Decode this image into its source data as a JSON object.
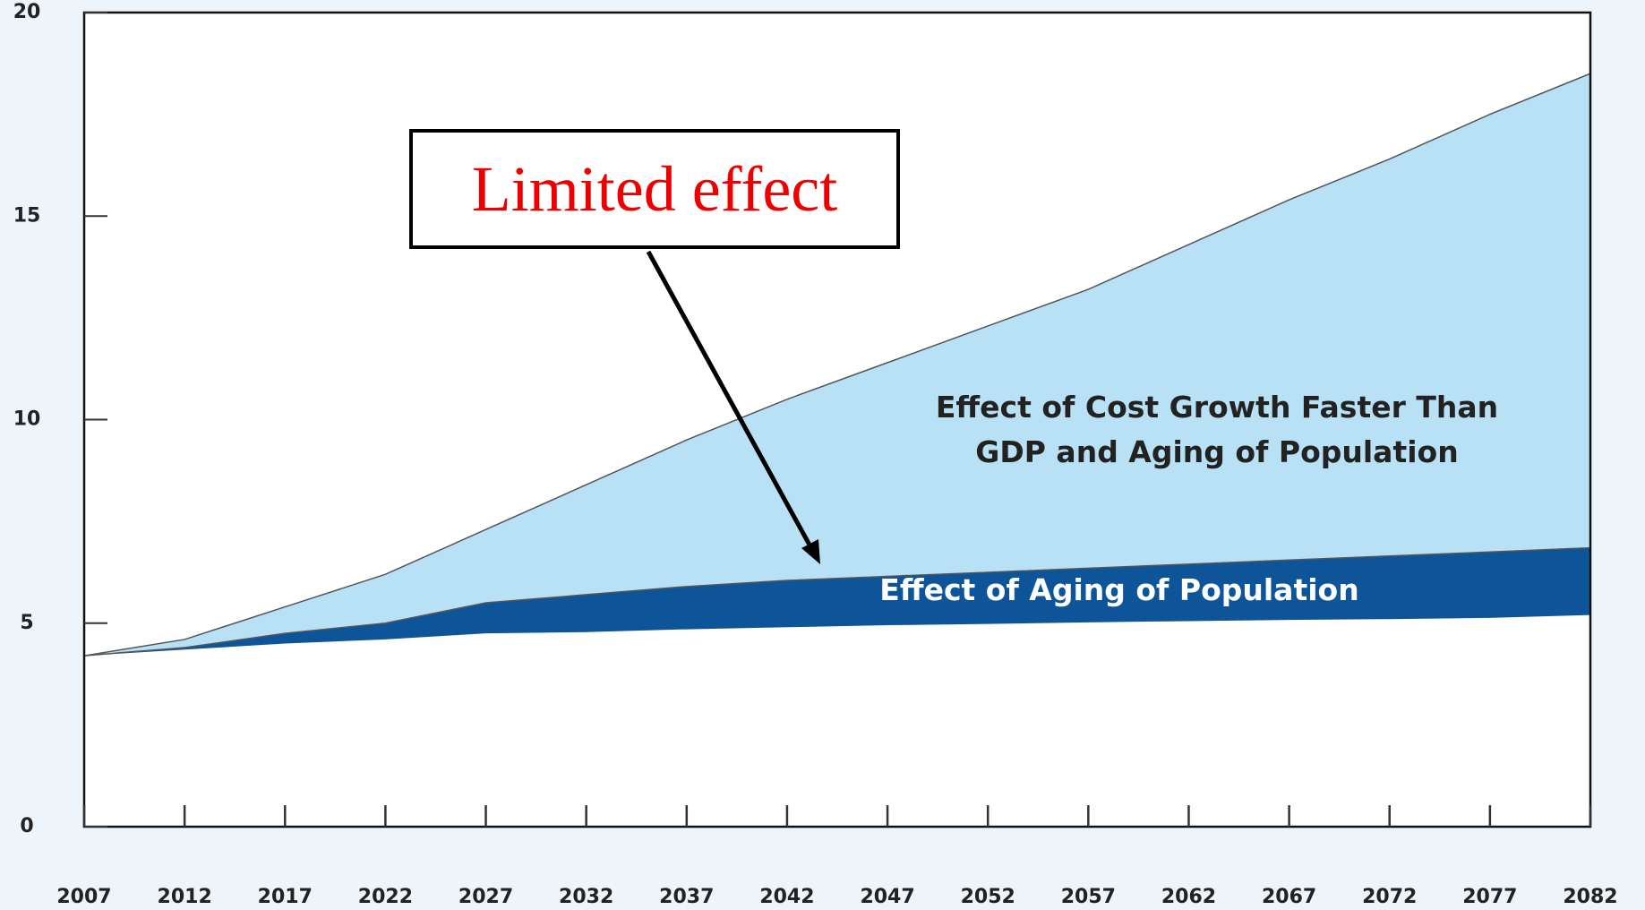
{
  "chart_data": {
    "type": "area",
    "x": [
      2007,
      2012,
      2017,
      2022,
      2027,
      2032,
      2037,
      2042,
      2047,
      2052,
      2057,
      2062,
      2067,
      2072,
      2077,
      2082
    ],
    "series": [
      {
        "color": "#ffffff",
        "values": [
          4.2,
          4.35,
          4.5,
          4.6,
          4.75,
          4.78,
          4.85,
          4.9,
          4.95,
          4.98,
          5.02,
          5.05,
          5.08,
          5.1,
          5.13,
          5.2
        ]
      },
      {
        "name": "Effect of Aging of Population",
        "color": "#0d5598",
        "values": [
          0,
          0.05,
          0.25,
          0.4,
          0.75,
          0.92,
          1.05,
          1.15,
          1.2,
          1.27,
          1.33,
          1.4,
          1.47,
          1.55,
          1.62,
          1.65
        ]
      },
      {
        "name": "Effect of Cost Growth Faster Than GDP and Aging of Population",
        "color": "#b8e1f5",
        "values": [
          0,
          0.2,
          0.65,
          1.2,
          1.8,
          2.7,
          3.6,
          4.45,
          5.25,
          6.05,
          6.85,
          7.85,
          8.85,
          9.75,
          10.75,
          11.65
        ]
      }
    ],
    "xlim": [
      2007,
      2082
    ],
    "xticks": [
      2007,
      2012,
      2017,
      2022,
      2027,
      2032,
      2037,
      2042,
      2047,
      2052,
      2057,
      2062,
      2067,
      2072,
      2077,
      2082
    ],
    "ylim": [
      0,
      20
    ],
    "yticks": [
      0,
      5,
      10,
      15,
      20
    ],
    "annotation": "Limited effect"
  }
}
